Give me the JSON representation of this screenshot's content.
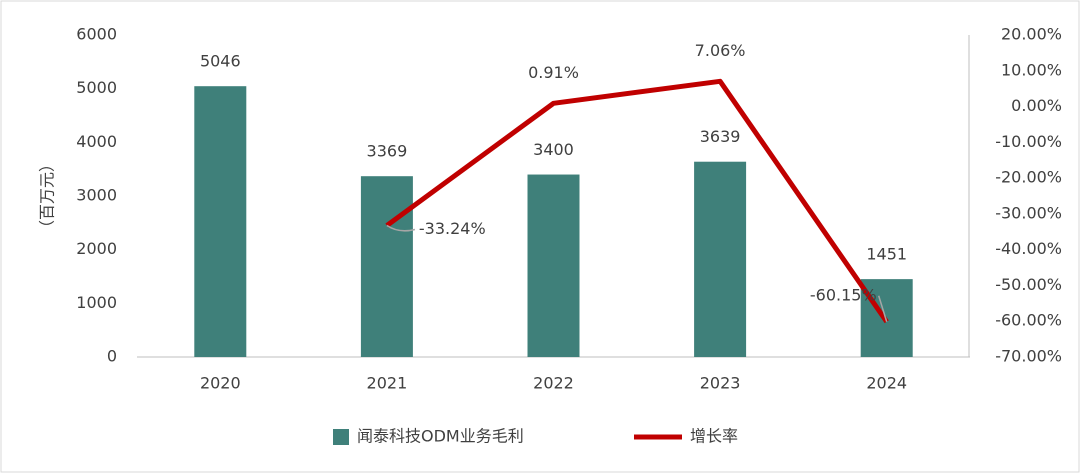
{
  "chart_data": {
    "type": "bar",
    "y_label": "（百万元）",
    "categories": [
      "2020",
      "2021",
      "2022",
      "2023",
      "2024"
    ],
    "series": [
      {
        "name": "闻泰科技ODM业务毛利",
        "type": "bar",
        "color": "#3f807a",
        "values": [
          5046,
          3369,
          3400,
          3639,
          1451
        ]
      },
      {
        "name": "增长率",
        "type": "line",
        "axis": "y2",
        "color": "#c00000",
        "values": [
          null,
          -33.24,
          0.91,
          7.06,
          -60.15
        ],
        "value_labels": [
          null,
          "-33.24%",
          "0.91%",
          "7.06%",
          "-60.15%"
        ]
      }
    ],
    "ylim": [
      0,
      6000
    ],
    "yticks": [
      0,
      1000,
      2000,
      3000,
      4000,
      5000,
      6000
    ],
    "y2lim": [
      -70,
      20
    ],
    "y2ticks": [
      {
        "value": -70,
        "label": "-70.00%"
      },
      {
        "value": -60,
        "label": "-60.00%"
      },
      {
        "value": -50,
        "label": "-50.00%"
      },
      {
        "value": -40,
        "label": "-40.00%"
      },
      {
        "value": -30,
        "label": "-30.00%"
      },
      {
        "value": -20,
        "label": "-20.00%"
      },
      {
        "value": -10,
        "label": "-10.00%"
      },
      {
        "value": 0,
        "label": "0.00%"
      },
      {
        "value": 10,
        "label": "10.00%"
      },
      {
        "value": 20,
        "label": "20.00%"
      }
    ],
    "grid": false,
    "legend": "bottom"
  }
}
